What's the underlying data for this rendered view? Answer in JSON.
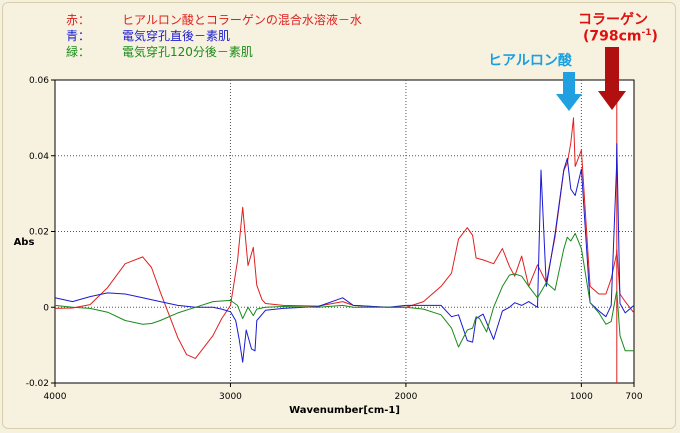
{
  "legend": [
    {
      "key": "赤：",
      "label": "ヒアルロン酸とコラーゲンの混合水溶液－水",
      "color": "#e02020"
    },
    {
      "key": "青：",
      "label": "電気穿孔直後－素肌",
      "color": "#1a1ad0"
    },
    {
      "key": "緑：",
      "label": "電気穿孔120分後－素肌",
      "color": "#1a8a1a"
    }
  ],
  "annotations": {
    "collagen_label": "コラーゲン",
    "collagen_wn": "(798cm",
    "collagen_sup": "-1",
    "collagen_close": ")",
    "hyaluronic_label": "ヒアルロン酸"
  },
  "colors": {
    "collagen_arrow": "#b01010",
    "hyaluronic_arrow": "#20a0e0",
    "red": "#e02020",
    "blue": "#1a1ad0",
    "green": "#1a8a1a"
  },
  "chart_data": {
    "type": "line",
    "xlabel": "Wavenumber[cm-1]",
    "ylabel": "Abs",
    "xlim": [
      4000,
      700
    ],
    "ylim": [
      -0.02,
      0.06
    ],
    "x_ticks": [
      "4000",
      "3000",
      "2000",
      "1000",
      "700"
    ],
    "y_ticks": [
      "0.06",
      "0.04",
      "0.02",
      "0",
      "-0.02"
    ],
    "grid": "dotted",
    "series": [
      {
        "name": "赤",
        "color": "#e02020",
        "x": [
          4000,
          3900,
          3800,
          3700,
          3600,
          3500,
          3450,
          3400,
          3300,
          3250,
          3200,
          3100,
          3050,
          3000,
          2960,
          2930,
          2900,
          2870,
          2850,
          2820,
          2800,
          2700,
          2500,
          2360,
          2300,
          2100,
          2000,
          1900,
          1800,
          1740,
          1700,
          1650,
          1620,
          1600,
          1560,
          1500,
          1450,
          1410,
          1380,
          1340,
          1300,
          1250,
          1200,
          1150,
          1100,
          1080,
          1060,
          1045,
          1035,
          1000,
          950,
          900,
          860,
          830,
          800,
          798,
          780,
          750,
          700
        ],
        "y": [
          -0.0003,
          -0.0002,
          0.0007,
          0.0052,
          0.0115,
          0.0133,
          0.0105,
          0.004,
          -0.008,
          -0.0125,
          -0.0135,
          -0.0075,
          -0.003,
          0.0005,
          0.0122,
          0.0264,
          0.011,
          0.0158,
          0.0058,
          0.002,
          0.001,
          0.0005,
          0.0003,
          0.0015,
          0.0005,
          0.0,
          0.0,
          0.0015,
          0.0055,
          0.009,
          0.018,
          0.021,
          0.019,
          0.013,
          0.0125,
          0.0115,
          0.0155,
          0.0108,
          0.0082,
          0.0135,
          0.0055,
          0.0112,
          0.0065,
          0.0185,
          0.0361,
          0.0381,
          0.0434,
          0.05,
          0.0372,
          0.0415,
          0.0055,
          0.0035,
          0.0035,
          0.0075,
          0.014,
          0.0152,
          0.0035,
          0.0015,
          -0.0015
        ]
      },
      {
        "name": "青",
        "color": "#1a1ad0",
        "x": [
          4000,
          3900,
          3800,
          3700,
          3600,
          3500,
          3400,
          3300,
          3200,
          3100,
          3050,
          3000,
          2970,
          2950,
          2930,
          2910,
          2880,
          2860,
          2850,
          2800,
          2700,
          2500,
          2360,
          2300,
          2100,
          2000,
          1900,
          1800,
          1740,
          1700,
          1650,
          1620,
          1600,
          1560,
          1500,
          1450,
          1410,
          1380,
          1340,
          1300,
          1250,
          1230,
          1200,
          1150,
          1100,
          1080,
          1060,
          1035,
          1000,
          950,
          900,
          860,
          830,
          800,
          798,
          780,
          750,
          700
        ],
        "y": [
          0.0025,
          0.0015,
          0.0028,
          0.0038,
          0.0035,
          0.0025,
          0.0015,
          0.0005,
          0.0,
          0.0,
          -0.0005,
          -0.0012,
          -0.0035,
          -0.0085,
          -0.0145,
          -0.006,
          -0.011,
          -0.0115,
          -0.0035,
          -0.0008,
          -0.0003,
          0.0002,
          0.0025,
          0.0005,
          0.0,
          0.0005,
          0.0005,
          0.0005,
          -0.0025,
          -0.002,
          -0.0088,
          -0.0092,
          -0.003,
          -0.0018,
          -0.0085,
          -0.001,
          0.0,
          0.0012,
          0.0005,
          0.0015,
          0.0,
          0.0362,
          0.0055,
          0.0193,
          0.0363,
          0.0393,
          0.0312,
          0.0295,
          0.0365,
          0.0012,
          -0.001,
          -0.0025,
          0.0005,
          0.0368,
          0.0432,
          0.001,
          -0.0015,
          0.0005
        ]
      },
      {
        "name": "緑",
        "color": "#1a8a1a",
        "x": [
          4000,
          3900,
          3800,
          3700,
          3600,
          3500,
          3450,
          3400,
          3300,
          3200,
          3100,
          3000,
          2960,
          2930,
          2900,
          2870,
          2850,
          2800,
          2700,
          2500,
          2360,
          2300,
          2100,
          2000,
          1900,
          1800,
          1740,
          1700,
          1650,
          1620,
          1600,
          1580,
          1540,
          1500,
          1450,
          1410,
          1380,
          1340,
          1300,
          1250,
          1200,
          1150,
          1100,
          1080,
          1060,
          1035,
          1000,
          950,
          900,
          860,
          830,
          800,
          798,
          780,
          750,
          700
        ],
        "y": [
          0.0005,
          0.0,
          -0.0003,
          -0.0013,
          -0.0035,
          -0.0045,
          -0.0043,
          -0.0035,
          -0.0015,
          0.0,
          0.0015,
          0.0018,
          0.0005,
          -0.003,
          0.0,
          -0.0022,
          -0.0005,
          0.0,
          0.0002,
          0.0,
          0.0005,
          0.0,
          0.0,
          0.0,
          -0.0005,
          -0.002,
          -0.0055,
          -0.0105,
          -0.006,
          -0.0055,
          -0.0025,
          -0.003,
          -0.0065,
          0.0,
          0.0055,
          0.0085,
          0.0088,
          0.0082,
          0.0055,
          0.0025,
          0.0065,
          0.0045,
          0.0154,
          0.0185,
          0.0175,
          0.0195,
          0.0155,
          0.0012,
          -0.0015,
          -0.0045,
          -0.0038,
          0.004,
          0.0042,
          -0.0075,
          -0.0115,
          -0.0115
        ]
      }
    ]
  }
}
